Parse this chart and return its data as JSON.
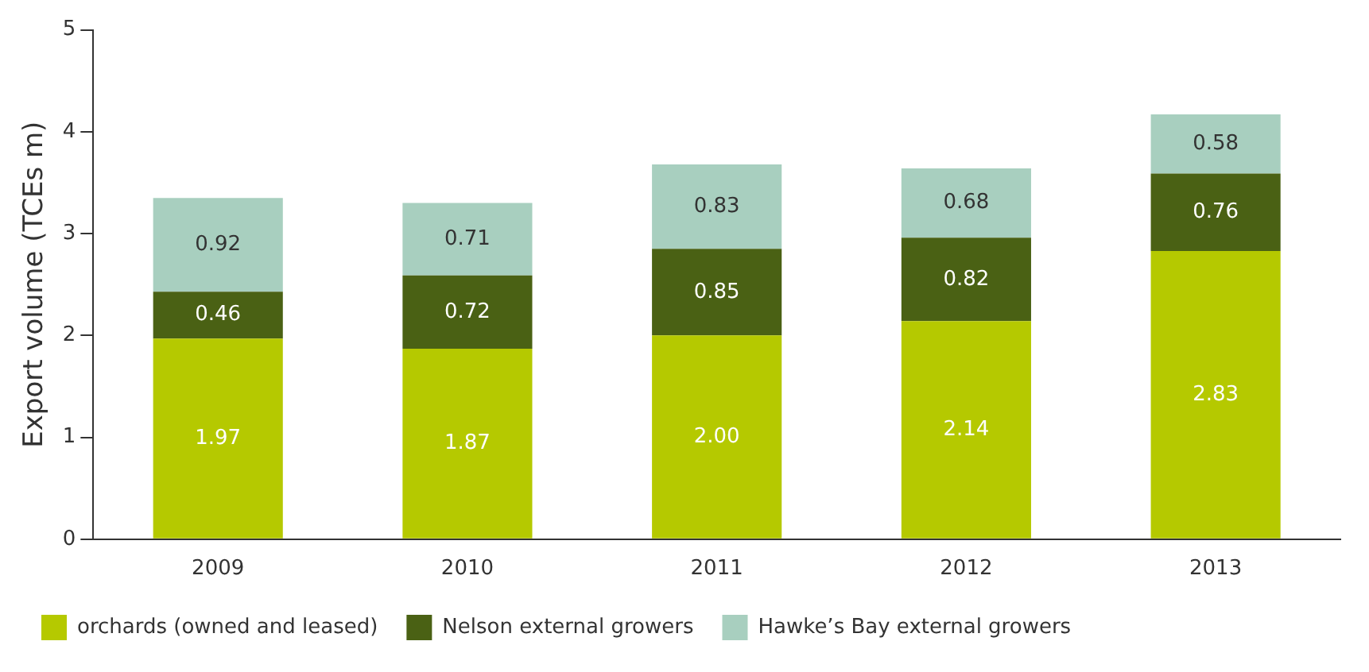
{
  "chart_data": {
    "type": "bar",
    "ylabel": "Export volume (TCEs m)",
    "categories": [
      "2009",
      "2010",
      "2011",
      "2012",
      "2013"
    ],
    "stacked": true,
    "ylim": [
      0,
      5
    ],
    "yticks": [
      0,
      1,
      2,
      3,
      4,
      5
    ],
    "grid": false,
    "legend": "bottom",
    "series": [
      {
        "name": "orchards (owned and leased)",
        "color": "#b5c900",
        "values": [
          1.97,
          1.87,
          2.0,
          2.14,
          2.83
        ],
        "value_labels": [
          "1.97",
          "1.87",
          "2.00",
          "2.14",
          "2.83"
        ]
      },
      {
        "name": "Nelson external growers",
        "color": "#4a6114",
        "values": [
          0.46,
          0.72,
          0.85,
          0.82,
          0.76
        ],
        "value_labels": [
          "0.46",
          "0.72",
          "0.85",
          "0.82",
          "0.76"
        ]
      },
      {
        "name": "Hawke’s Bay external growers",
        "color": "#a8cfbf",
        "values": [
          0.92,
          0.71,
          0.83,
          0.68,
          0.58
        ],
        "value_labels": [
          "0.92",
          "0.71",
          "0.83",
          "0.68",
          "0.58"
        ]
      }
    ]
  }
}
